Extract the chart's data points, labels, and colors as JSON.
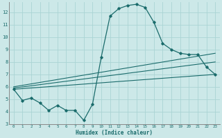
{
  "xlabel": "Humidex (Indice chaleur)",
  "background_color": "#cce8e8",
  "grid_color": "#aad4d4",
  "line_color": "#1a6b6b",
  "x_data": [
    0,
    1,
    2,
    3,
    4,
    5,
    6,
    7,
    8,
    9,
    10,
    11,
    12,
    13,
    14,
    15,
    16,
    17,
    18,
    19,
    20,
    21,
    22,
    23
  ],
  "main_line": [
    5.8,
    4.9,
    5.1,
    4.7,
    4.1,
    4.5,
    4.1,
    4.1,
    3.3,
    4.6,
    8.4,
    11.7,
    12.3,
    12.55,
    12.65,
    12.4,
    11.2,
    9.5,
    9.0,
    8.7,
    8.6,
    8.6,
    7.6,
    7.0
  ],
  "reg_line1": [
    [
      0,
      5.8
    ],
    [
      23,
      7.0
    ]
  ],
  "reg_line2": [
    [
      0,
      5.9
    ],
    [
      23,
      8.0
    ]
  ],
  "reg_line3": [
    [
      0,
      6.0
    ],
    [
      23,
      8.7
    ]
  ],
  "ylim": [
    3,
    12.8
  ],
  "xlim": [
    -0.5,
    23.5
  ],
  "yticks": [
    3,
    4,
    5,
    6,
    7,
    8,
    9,
    10,
    11,
    12
  ],
  "xticks": [
    0,
    1,
    2,
    3,
    4,
    5,
    6,
    7,
    8,
    9,
    10,
    11,
    12,
    13,
    14,
    15,
    16,
    17,
    18,
    19,
    20,
    21,
    22,
    23
  ]
}
